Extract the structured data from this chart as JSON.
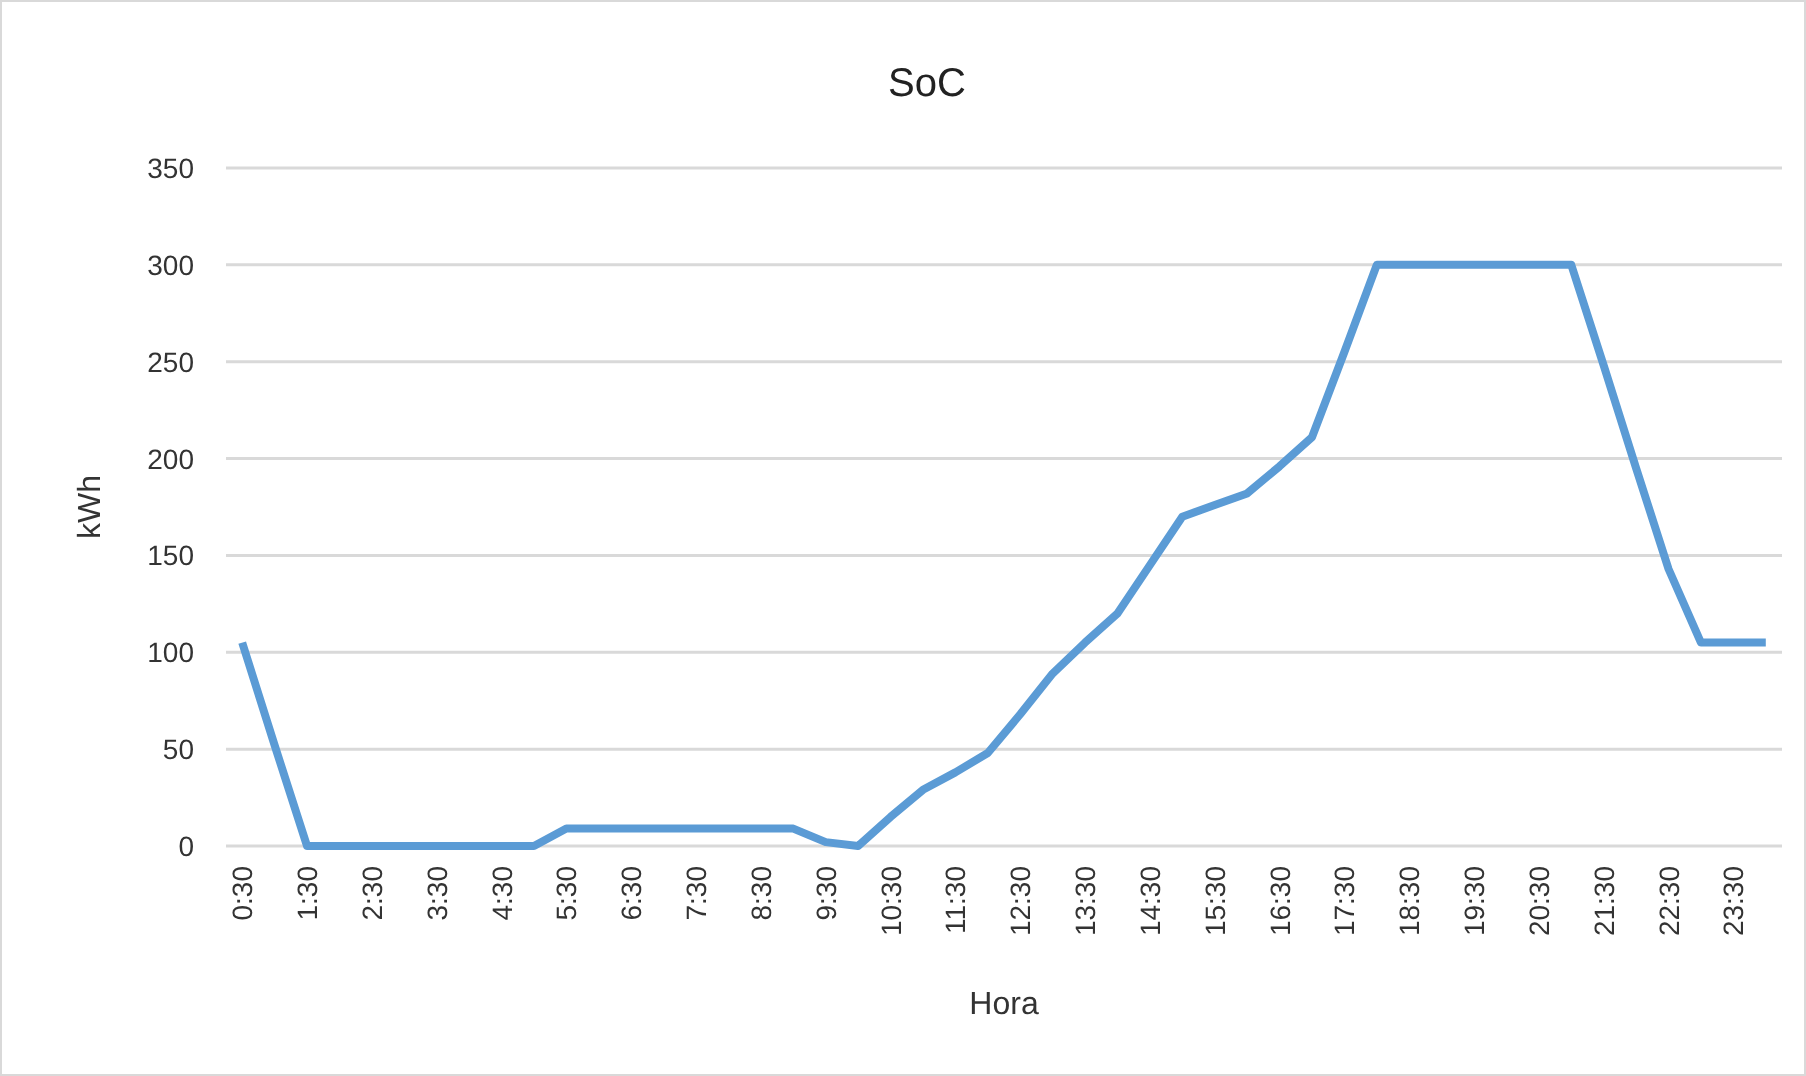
{
  "chart_data": {
    "type": "line",
    "title": "SoC",
    "xlabel": "Hora",
    "ylabel": "kWh",
    "categories": [
      "0:30",
      null,
      "1:30",
      null,
      "2:30",
      null,
      "3:30",
      null,
      "4:30",
      null,
      "5:30",
      null,
      "6:30",
      null,
      "7:30",
      null,
      "8:30",
      null,
      "9:30",
      null,
      "10:30",
      null,
      "11:30",
      null,
      "12:30",
      null,
      "13:30",
      null,
      "14:30",
      null,
      "15:30",
      null,
      "16:30",
      null,
      "17:30",
      null,
      "18:30",
      null,
      "19:30",
      null,
      "20:30",
      null,
      "21:30",
      null,
      "22:30",
      null,
      "23:30",
      null
    ],
    "series": [
      {
        "color": "#5b9bd5",
        "values": [
          105,
          52,
          0,
          0,
          0,
          0,
          0,
          0,
          0,
          0,
          9,
          9,
          9,
          9,
          9,
          9,
          9,
          9,
          2,
          0,
          15,
          29,
          38,
          48,
          68,
          89,
          105,
          120,
          145,
          170,
          176,
          182,
          196,
          211,
          255,
          300,
          300,
          300,
          300,
          300,
          300,
          300,
          248,
          195,
          143,
          105,
          105,
          105
        ]
      }
    ],
    "ylim": [
      0,
      350
    ],
    "yticks": [
      0,
      50,
      100,
      150,
      200,
      250,
      300,
      350
    ],
    "grid": "y",
    "marker": "none",
    "line_style": "solid"
  }
}
